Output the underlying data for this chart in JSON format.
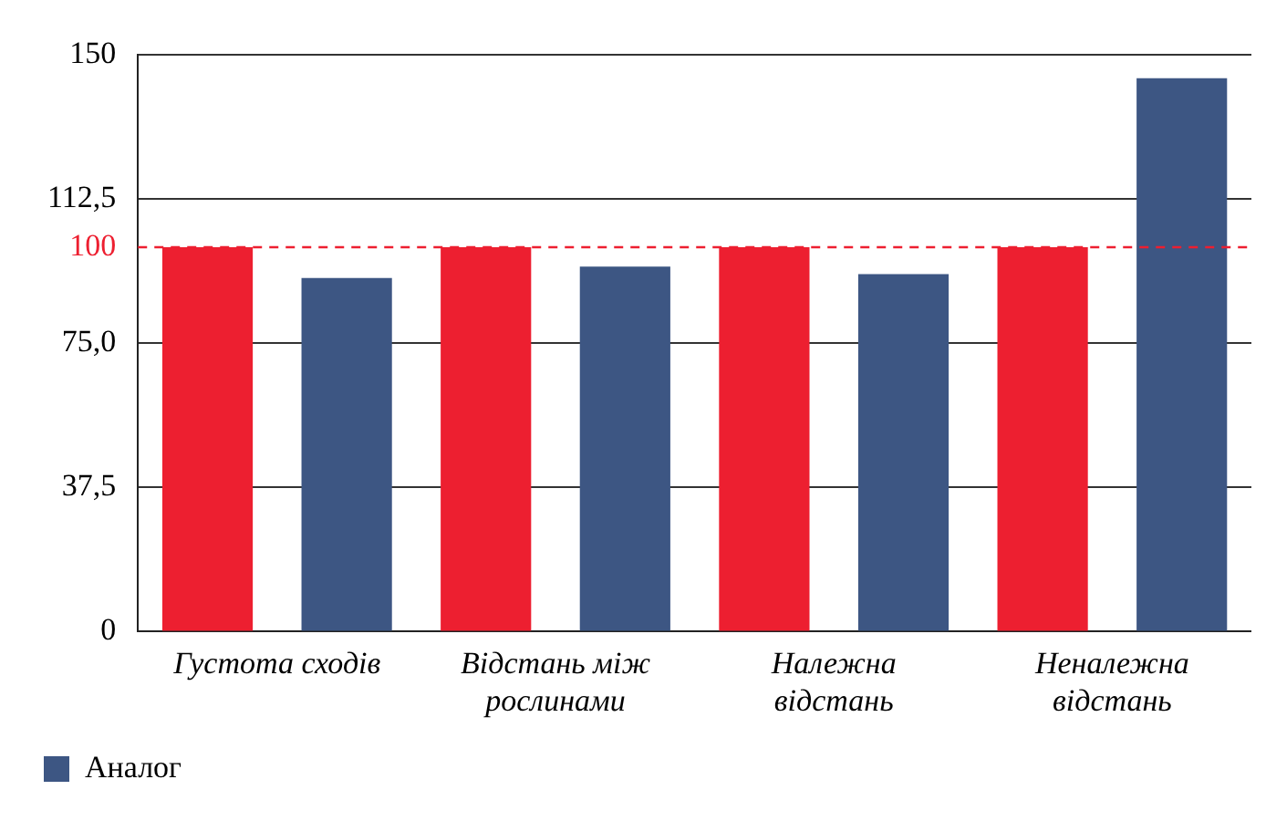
{
  "chart_data": {
    "type": "bar",
    "categories": [
      "Густота сходів",
      "Відстань між рослинами",
      "Належна відстань",
      "Неналежна відстань"
    ],
    "series": [
      {
        "color": "#ed1f30",
        "values": [
          100,
          100,
          100,
          100
        ]
      },
      {
        "name": "Аналог",
        "color": "#3d5683",
        "values": [
          92,
          95,
          93,
          144
        ]
      }
    ],
    "ylim": [
      0,
      150
    ],
    "yticks": [
      0,
      {
        "value": 37.5,
        "label": "37,5"
      },
      {
        "value": 75,
        "label": "75,0"
      },
      {
        "value": 112.5,
        "label": "112,5"
      },
      150
    ],
    "ref_lines": [
      {
        "axis": "y",
        "value": 100,
        "label": "100",
        "color": "#ed1f30",
        "line_style": "dashed"
      }
    ],
    "grid": "y",
    "legend": "bottom left"
  }
}
